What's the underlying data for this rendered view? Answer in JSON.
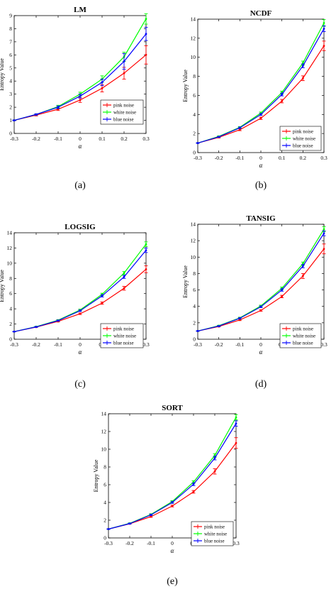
{
  "chart_data": [
    {
      "type": "line",
      "title": "LM",
      "caption": "(a)",
      "xlabel": "α",
      "ylabel": "Entropy Value",
      "x": [
        -0.3,
        -0.2,
        -0.1,
        0,
        0.1,
        0.2,
        0.3
      ],
      "xlim": [
        -0.3,
        0.3
      ],
      "ylim": [
        0,
        9
      ],
      "xticks": [
        "-0.3",
        "-0.2",
        "-0.1",
        "0",
        "0.1",
        "0.2",
        "0.3"
      ],
      "yticks": [
        "0",
        "1",
        "2",
        "3",
        "4",
        "5",
        "6",
        "7",
        "8",
        "9"
      ],
      "legend_position": "bottom-right",
      "series": [
        {
          "name": "pink noise",
          "color": "#ff0000",
          "values": [
            1.0,
            1.4,
            1.85,
            2.55,
            3.45,
            4.6,
            6.0
          ],
          "errors": [
            0.03,
            0.06,
            0.1,
            0.18,
            0.28,
            0.45,
            0.7
          ]
        },
        {
          "name": "white noise",
          "color": "#00ff00",
          "values": [
            1.0,
            1.45,
            2.05,
            3.0,
            4.15,
            5.85,
            8.75
          ],
          "errors": [
            0.03,
            0.05,
            0.1,
            0.15,
            0.25,
            0.35,
            0.4
          ]
        },
        {
          "name": "blue noise",
          "color": "#0000ff",
          "values": [
            1.0,
            1.45,
            2.0,
            2.85,
            3.9,
            5.5,
            7.6
          ],
          "errors": [
            0.03,
            0.05,
            0.1,
            0.15,
            0.25,
            0.6,
            0.5
          ]
        }
      ]
    },
    {
      "type": "line",
      "title": "NCDF",
      "caption": "(b)",
      "xlabel": "α",
      "ylabel": "Entropy Value",
      "x": [
        -0.3,
        -0.2,
        -0.1,
        0,
        0.1,
        0.2,
        0.3
      ],
      "xlim": [
        -0.3,
        0.3
      ],
      "ylim": [
        0,
        14
      ],
      "xticks": [
        "-0.3",
        "-0.2",
        "-0.1",
        "0",
        "0.1",
        "0.2",
        "0.3"
      ],
      "yticks": [
        "0",
        "2",
        "4",
        "6",
        "8",
        "10",
        "12",
        "14"
      ],
      "legend_position": "bottom-right",
      "series": [
        {
          "name": "pink noise",
          "color": "#ff0000",
          "values": [
            1.0,
            1.6,
            2.4,
            3.6,
            5.4,
            7.8,
            11.2
          ],
          "errors": [
            0.03,
            0.06,
            0.1,
            0.12,
            0.18,
            0.25,
            0.5
          ]
        },
        {
          "name": "white noise",
          "color": "#00ff00",
          "values": [
            1.0,
            1.7,
            2.65,
            4.15,
            6.3,
            9.4,
            13.6
          ],
          "errors": [
            0.03,
            0.05,
            0.08,
            0.1,
            0.15,
            0.2,
            0.35
          ]
        },
        {
          "name": "blue noise",
          "color": "#0000ff",
          "values": [
            1.0,
            1.65,
            2.6,
            4.0,
            6.1,
            9.1,
            13.0
          ],
          "errors": [
            0.03,
            0.05,
            0.08,
            0.1,
            0.15,
            0.2,
            0.3
          ]
        }
      ]
    },
    {
      "type": "line",
      "title": "LOGSIG",
      "caption": "(c)",
      "xlabel": "α",
      "ylabel": "Entropy Value",
      "x": [
        -0.3,
        -0.2,
        -0.1,
        0,
        0.1,
        0.2,
        0.3
      ],
      "xlim": [
        -0.3,
        0.3
      ],
      "ylim": [
        0,
        14
      ],
      "xticks": [
        "-0.3",
        "-0.2",
        "-0.1",
        "0",
        "0.1",
        "0.2",
        "0.3"
      ],
      "yticks": [
        "0",
        "2",
        "4",
        "6",
        "8",
        "10",
        "12",
        "14"
      ],
      "legend_position": "bottom-right",
      "series": [
        {
          "name": "pink noise",
          "color": "#ff0000",
          "values": [
            1.0,
            1.6,
            2.35,
            3.35,
            4.75,
            6.7,
            9.2
          ],
          "errors": [
            0.03,
            0.05,
            0.08,
            0.1,
            0.15,
            0.25,
            0.45
          ]
        },
        {
          "name": "white noise",
          "color": "#00ff00",
          "values": [
            1.0,
            1.65,
            2.5,
            3.85,
            5.9,
            8.7,
            12.5
          ],
          "errors": [
            0.03,
            0.05,
            0.08,
            0.1,
            0.15,
            0.2,
            0.3
          ]
        },
        {
          "name": "blue noise",
          "color": "#0000ff",
          "values": [
            1.0,
            1.62,
            2.45,
            3.75,
            5.7,
            8.2,
            11.7
          ],
          "errors": [
            0.03,
            0.05,
            0.08,
            0.1,
            0.15,
            0.2,
            0.3
          ]
        }
      ]
    },
    {
      "type": "line",
      "title": "TANSIG",
      "caption": "(d)",
      "xlabel": "α",
      "ylabel": "Entropy Value",
      "x": [
        -0.3,
        -0.2,
        -0.1,
        0,
        0.1,
        0.2,
        0.3
      ],
      "xlim": [
        -0.3,
        0.3
      ],
      "ylim": [
        0,
        14
      ],
      "xticks": [
        "-0.3",
        "-0.2",
        "-0.1",
        "0",
        "0.1",
        "0.2",
        "0.3"
      ],
      "yticks": [
        "0",
        "2",
        "4",
        "6",
        "8",
        "10",
        "12",
        "14"
      ],
      "legend_position": "bottom-right",
      "series": [
        {
          "name": "pink noise",
          "color": "#ff0000",
          "values": [
            1.0,
            1.55,
            2.35,
            3.5,
            5.2,
            7.7,
            11.0
          ],
          "errors": [
            0.03,
            0.05,
            0.08,
            0.1,
            0.15,
            0.3,
            0.6
          ]
        },
        {
          "name": "white noise",
          "color": "#00ff00",
          "values": [
            1.0,
            1.65,
            2.6,
            4.05,
            6.2,
            9.2,
            13.4
          ],
          "errors": [
            0.03,
            0.05,
            0.08,
            0.1,
            0.15,
            0.2,
            0.3
          ]
        },
        {
          "name": "blue noise",
          "color": "#0000ff",
          "values": [
            1.0,
            1.6,
            2.55,
            3.95,
            6.0,
            8.9,
            12.9
          ],
          "errors": [
            0.03,
            0.05,
            0.08,
            0.1,
            0.15,
            0.2,
            0.3
          ]
        }
      ]
    },
    {
      "type": "line",
      "title": "SORT",
      "caption": "(e)",
      "xlabel": "α",
      "ylabel": "Entropy Value",
      "x": [
        -0.3,
        -0.2,
        -0.1,
        0,
        0.1,
        0.2,
        0.3
      ],
      "xlim": [
        -0.3,
        0.3
      ],
      "ylim": [
        0,
        14
      ],
      "xticks": [
        "-0.3",
        "-0.2",
        "-0.1",
        "0",
        "0.1",
        "0.2",
        "0.3"
      ],
      "yticks": [
        "0",
        "2",
        "4",
        "6",
        "8",
        "10",
        "12",
        "14"
      ],
      "legend_position": "bottom-right",
      "series": [
        {
          "name": "pink noise",
          "color": "#ff0000",
          "values": [
            1.0,
            1.6,
            2.4,
            3.6,
            5.2,
            7.5,
            10.7
          ],
          "errors": [
            0.03,
            0.05,
            0.08,
            0.1,
            0.15,
            0.3,
            0.6
          ]
        },
        {
          "name": "white noise",
          "color": "#00ff00",
          "values": [
            1.0,
            1.65,
            2.65,
            4.1,
            6.3,
            9.3,
            13.6
          ],
          "errors": [
            0.03,
            0.05,
            0.08,
            0.1,
            0.15,
            0.2,
            0.3
          ]
        },
        {
          "name": "blue noise",
          "color": "#0000ff",
          "values": [
            1.0,
            1.62,
            2.6,
            4.0,
            6.05,
            9.0,
            12.9
          ],
          "errors": [
            0.03,
            0.05,
            0.08,
            0.1,
            0.15,
            0.2,
            0.3
          ]
        }
      ]
    }
  ]
}
